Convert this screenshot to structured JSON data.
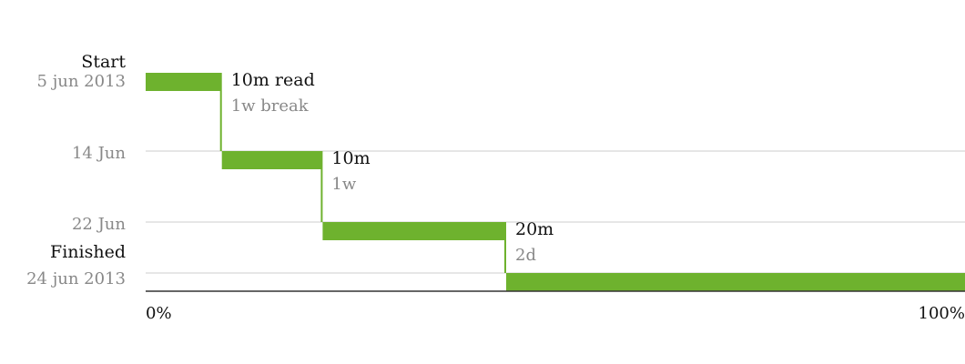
{
  "chart_data": {
    "type": "bar",
    "title": "",
    "xlabel": "",
    "ylabel": "",
    "xlim": [
      0,
      100
    ],
    "x_ticks": [
      {
        "value": 0,
        "label": "0%"
      },
      {
        "value": 100,
        "label": "100%"
      }
    ],
    "start": {
      "title": "Start",
      "date": "5 jun 2013"
    },
    "finish": {
      "title": "Finished",
      "date": "24 jun 2013"
    },
    "row_labels": [
      "14 Jun",
      "22 Jun"
    ],
    "segments": [
      {
        "x_start": 0,
        "x_end": 9.3,
        "label": "10m read",
        "gap_label": "1w break"
      },
      {
        "x_start": 9.3,
        "x_end": 21.6,
        "label": "10m",
        "gap_label": "1w"
      },
      {
        "x_start": 21.6,
        "x_end": 44.0,
        "label": "20m",
        "gap_label": "2d"
      },
      {
        "x_start": 44.0,
        "x_end": 100,
        "label": "",
        "gap_label": ""
      }
    ],
    "colors": {
      "bar": "#6eb22e",
      "grid": "#dddddd",
      "axis": "#333333",
      "label": "#111111",
      "muted": "#888888"
    }
  }
}
